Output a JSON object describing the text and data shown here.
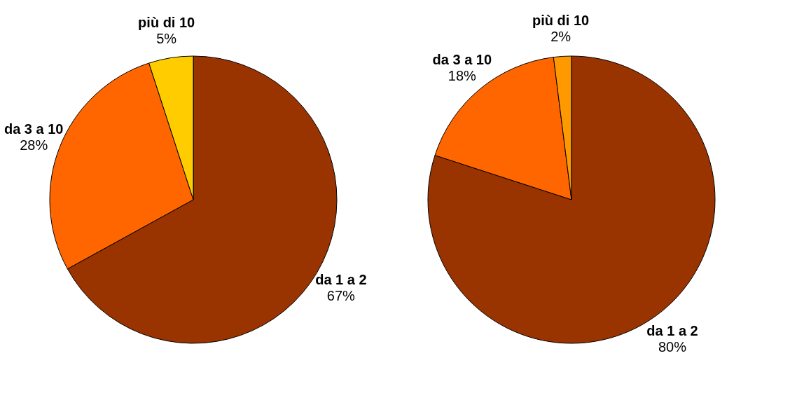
{
  "chart_data": [
    {
      "type": "pie",
      "categories": [
        "da 1 a 2",
        "da 3 a 10",
        "più di 10"
      ],
      "values": [
        67,
        28,
        5
      ],
      "colors": [
        "#993300",
        "#ff6600",
        "#ffcc00"
      ],
      "value_labels": [
        "67%",
        "28%",
        "5%"
      ]
    },
    {
      "type": "pie",
      "categories": [
        "da 1 a 2",
        "da 3 a 10",
        "più di 10"
      ],
      "values": [
        80,
        18,
        2
      ],
      "colors": [
        "#993300",
        "#ff6600",
        "#ff9900"
      ],
      "value_labels": [
        "80%",
        "18%",
        "2%"
      ]
    }
  ]
}
